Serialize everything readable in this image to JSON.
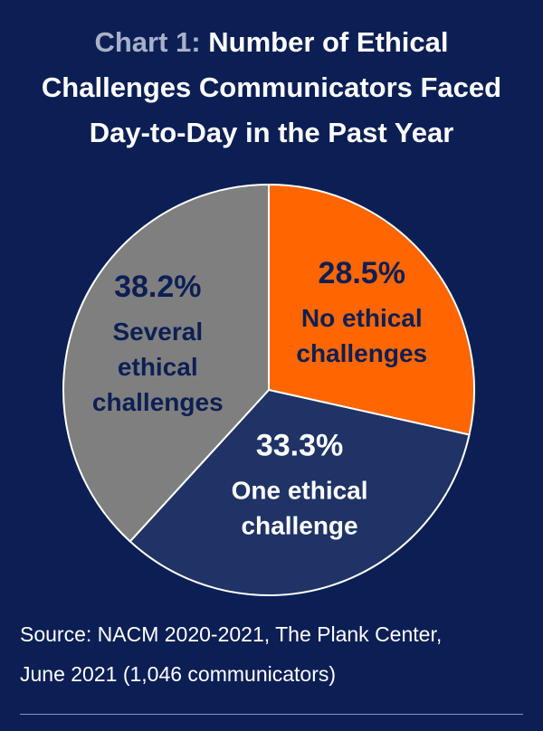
{
  "title": {
    "prefix": "Chart 1:",
    "line1": "Number of Ethical",
    "line2": "Challenges Communicators Faced",
    "line3": "Day-to-Day in the Past Year"
  },
  "chart_data": {
    "type": "pie",
    "title": "Chart 1: Number of Ethical Challenges Communicators Faced Day-to-Day in the Past Year",
    "slices": [
      {
        "label_lines": [
          "No ethical",
          "challenges"
        ],
        "value": 28.5,
        "display": "28.5%",
        "color": "#ff6600",
        "text_color": "#0c1f55"
      },
      {
        "label_lines": [
          "One ethical",
          "challenge"
        ],
        "value": 33.3,
        "display": "33.3%",
        "color": "#1f3366",
        "text_color": "#ffffff"
      },
      {
        "label_lines": [
          "Several",
          "ethical",
          "challenges"
        ],
        "value": 38.2,
        "display": "38.2%",
        "color": "#7f7f7f",
        "text_color": "#0c1f55"
      }
    ]
  },
  "source": {
    "line1": "Source: NACM 2020-2021, The Plank Center,",
    "line2": "June 2021 (1,046 communicators)"
  }
}
